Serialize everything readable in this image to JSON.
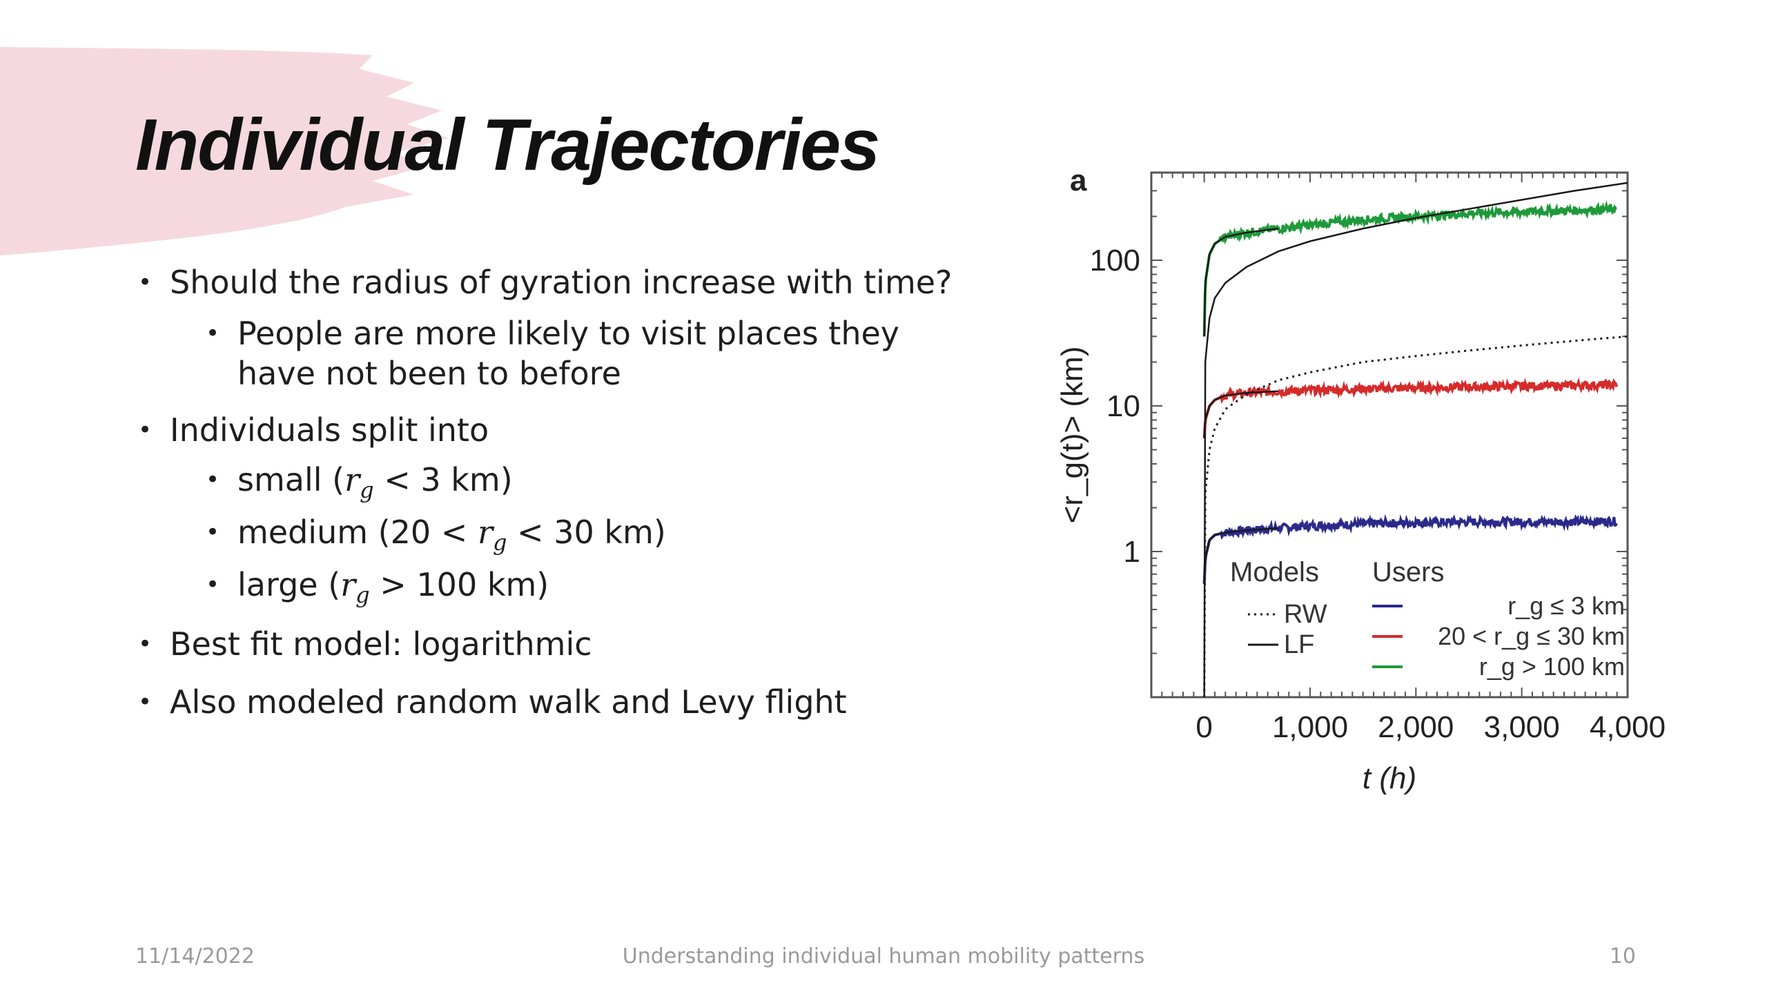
{
  "slide": {
    "title": "Individual Trajectories",
    "bullets": [
      {
        "level": 1,
        "text": "Should the radius of gyration increase with time?"
      },
      {
        "level": 2,
        "text": "People are more likely to visit places they have not been to before"
      },
      {
        "level": 1,
        "text": "Individuals split into"
      },
      {
        "level": 2,
        "prefix": "small (",
        "var": "r",
        "sub": "g",
        "suffix": " < 3 km)"
      },
      {
        "level": 2,
        "prefix": "medium (20 < ",
        "var": "r",
        "sub": "g",
        "suffix": " < 30 km)"
      },
      {
        "level": 2,
        "prefix": "large (",
        "var": "r",
        "sub": "g",
        "suffix": " > 100 km)"
      },
      {
        "level": 1,
        "text": "Best fit model: logarithmic"
      },
      {
        "level": 1,
        "text": "Also modeled random walk and Levy flight"
      }
    ]
  },
  "footer": {
    "date": "11/14/2022",
    "center": "Understanding individual human mobility patterns",
    "page": "10"
  },
  "colors": {
    "brush": "#f6d9de",
    "series_small": "#2b2a8c",
    "series_medium": "#d62b2b",
    "series_large": "#1e9a3a",
    "model_line": "#1a1a1a"
  },
  "chart_data": {
    "type": "line",
    "panel_label": "a",
    "xlabel": "t (h)",
    "ylabel": "<r_g(t)> (km)",
    "x_ticks": [
      {
        "value": 0,
        "label": "0"
      },
      {
        "value": 1000,
        "label": "1,000"
      },
      {
        "value": 2000,
        "label": "2,000"
      },
      {
        "value": 3000,
        "label": "3,000"
      },
      {
        "value": 4000,
        "label": "4,000"
      }
    ],
    "y_ticks": [
      {
        "value": 1,
        "label": "1"
      },
      {
        "value": 10,
        "label": "10"
      },
      {
        "value": 100,
        "label": "100"
      }
    ],
    "y_scale": "log",
    "xlim": [
      -500,
      4000
    ],
    "ylim": [
      0.1,
      400
    ],
    "legend": {
      "models_title": "Models",
      "users_title": "Users",
      "models": [
        {
          "label": "RW",
          "style": "dotted"
        },
        {
          "label": "LF",
          "style": "solid"
        }
      ],
      "users": [
        {
          "label": "r_g ≤ 3 km",
          "color_key": "series_small"
        },
        {
          "label": "20 < r_g ≤ 30 km",
          "color_key": "series_medium"
        },
        {
          "label": "r_g > 100 km",
          "color_key": "series_large"
        }
      ]
    },
    "series": [
      {
        "name": "r_g ≤ 3 km",
        "color_key": "series_small",
        "style": "noisy",
        "x": [
          0,
          10,
          50,
          100,
          200,
          400,
          700,
          1000,
          1500,
          2000,
          2500,
          3000,
          3500,
          3900
        ],
        "y": [
          0.6,
          0.9,
          1.2,
          1.3,
          1.35,
          1.4,
          1.45,
          1.5,
          1.55,
          1.58,
          1.6,
          1.6,
          1.6,
          1.62
        ]
      },
      {
        "name": "20 < r_g ≤ 30 km",
        "color_key": "series_medium",
        "style": "noisy",
        "x": [
          0,
          10,
          50,
          100,
          200,
          400,
          700,
          1000,
          1500,
          2000,
          2500,
          3000,
          3500,
          3900
        ],
        "y": [
          6,
          8,
          10,
          11,
          11.8,
          12.3,
          12.6,
          12.8,
          13.1,
          13.3,
          13.5,
          13.7,
          13.8,
          14
        ]
      },
      {
        "name": "r_g > 100 km",
        "color_key": "series_large",
        "style": "noisy",
        "x": [
          0,
          10,
          50,
          100,
          200,
          400,
          700,
          1000,
          1500,
          2000,
          2500,
          3000,
          3500,
          3900
        ],
        "y": [
          30,
          70,
          110,
          130,
          145,
          155,
          165,
          175,
          190,
          200,
          210,
          215,
          220,
          225
        ]
      },
      {
        "name": "LF",
        "color_key": "model_line",
        "style": "solid",
        "x": [
          0,
          10,
          50,
          100,
          200,
          400,
          700,
          1000,
          1500,
          2000,
          2500,
          3000,
          3500,
          4000
        ],
        "y": [
          0.1,
          20,
          40,
          55,
          70,
          90,
          115,
          135,
          165,
          195,
          225,
          260,
          300,
          340
        ]
      },
      {
        "name": "RW",
        "color_key": "model_line",
        "style": "dotted",
        "x": [
          0,
          10,
          50,
          100,
          200,
          400,
          700,
          1000,
          1500,
          2000,
          2500,
          3000,
          3500,
          4000
        ],
        "y": [
          0.1,
          2.5,
          5,
          7,
          9.5,
          12,
          15,
          17,
          20,
          22,
          24,
          26,
          28,
          30
        ]
      },
      {
        "name": "fit small",
        "color_key": "model_line",
        "style": "solid",
        "x": [
          0,
          10,
          50,
          100,
          200,
          400,
          700
        ],
        "y": [
          0.6,
          0.9,
          1.2,
          1.3,
          1.35,
          1.4,
          1.45
        ]
      },
      {
        "name": "fit medium",
        "color_key": "model_line",
        "style": "solid",
        "x": [
          0,
          10,
          50,
          100,
          200,
          400,
          700
        ],
        "y": [
          6,
          8,
          10,
          11,
          11.8,
          12.3,
          12.6
        ]
      },
      {
        "name": "fit large",
        "color_key": "model_line",
        "style": "solid",
        "x": [
          0,
          10,
          50,
          100,
          200,
          400,
          700
        ],
        "y": [
          30,
          70,
          110,
          130,
          145,
          155,
          165
        ]
      }
    ]
  }
}
